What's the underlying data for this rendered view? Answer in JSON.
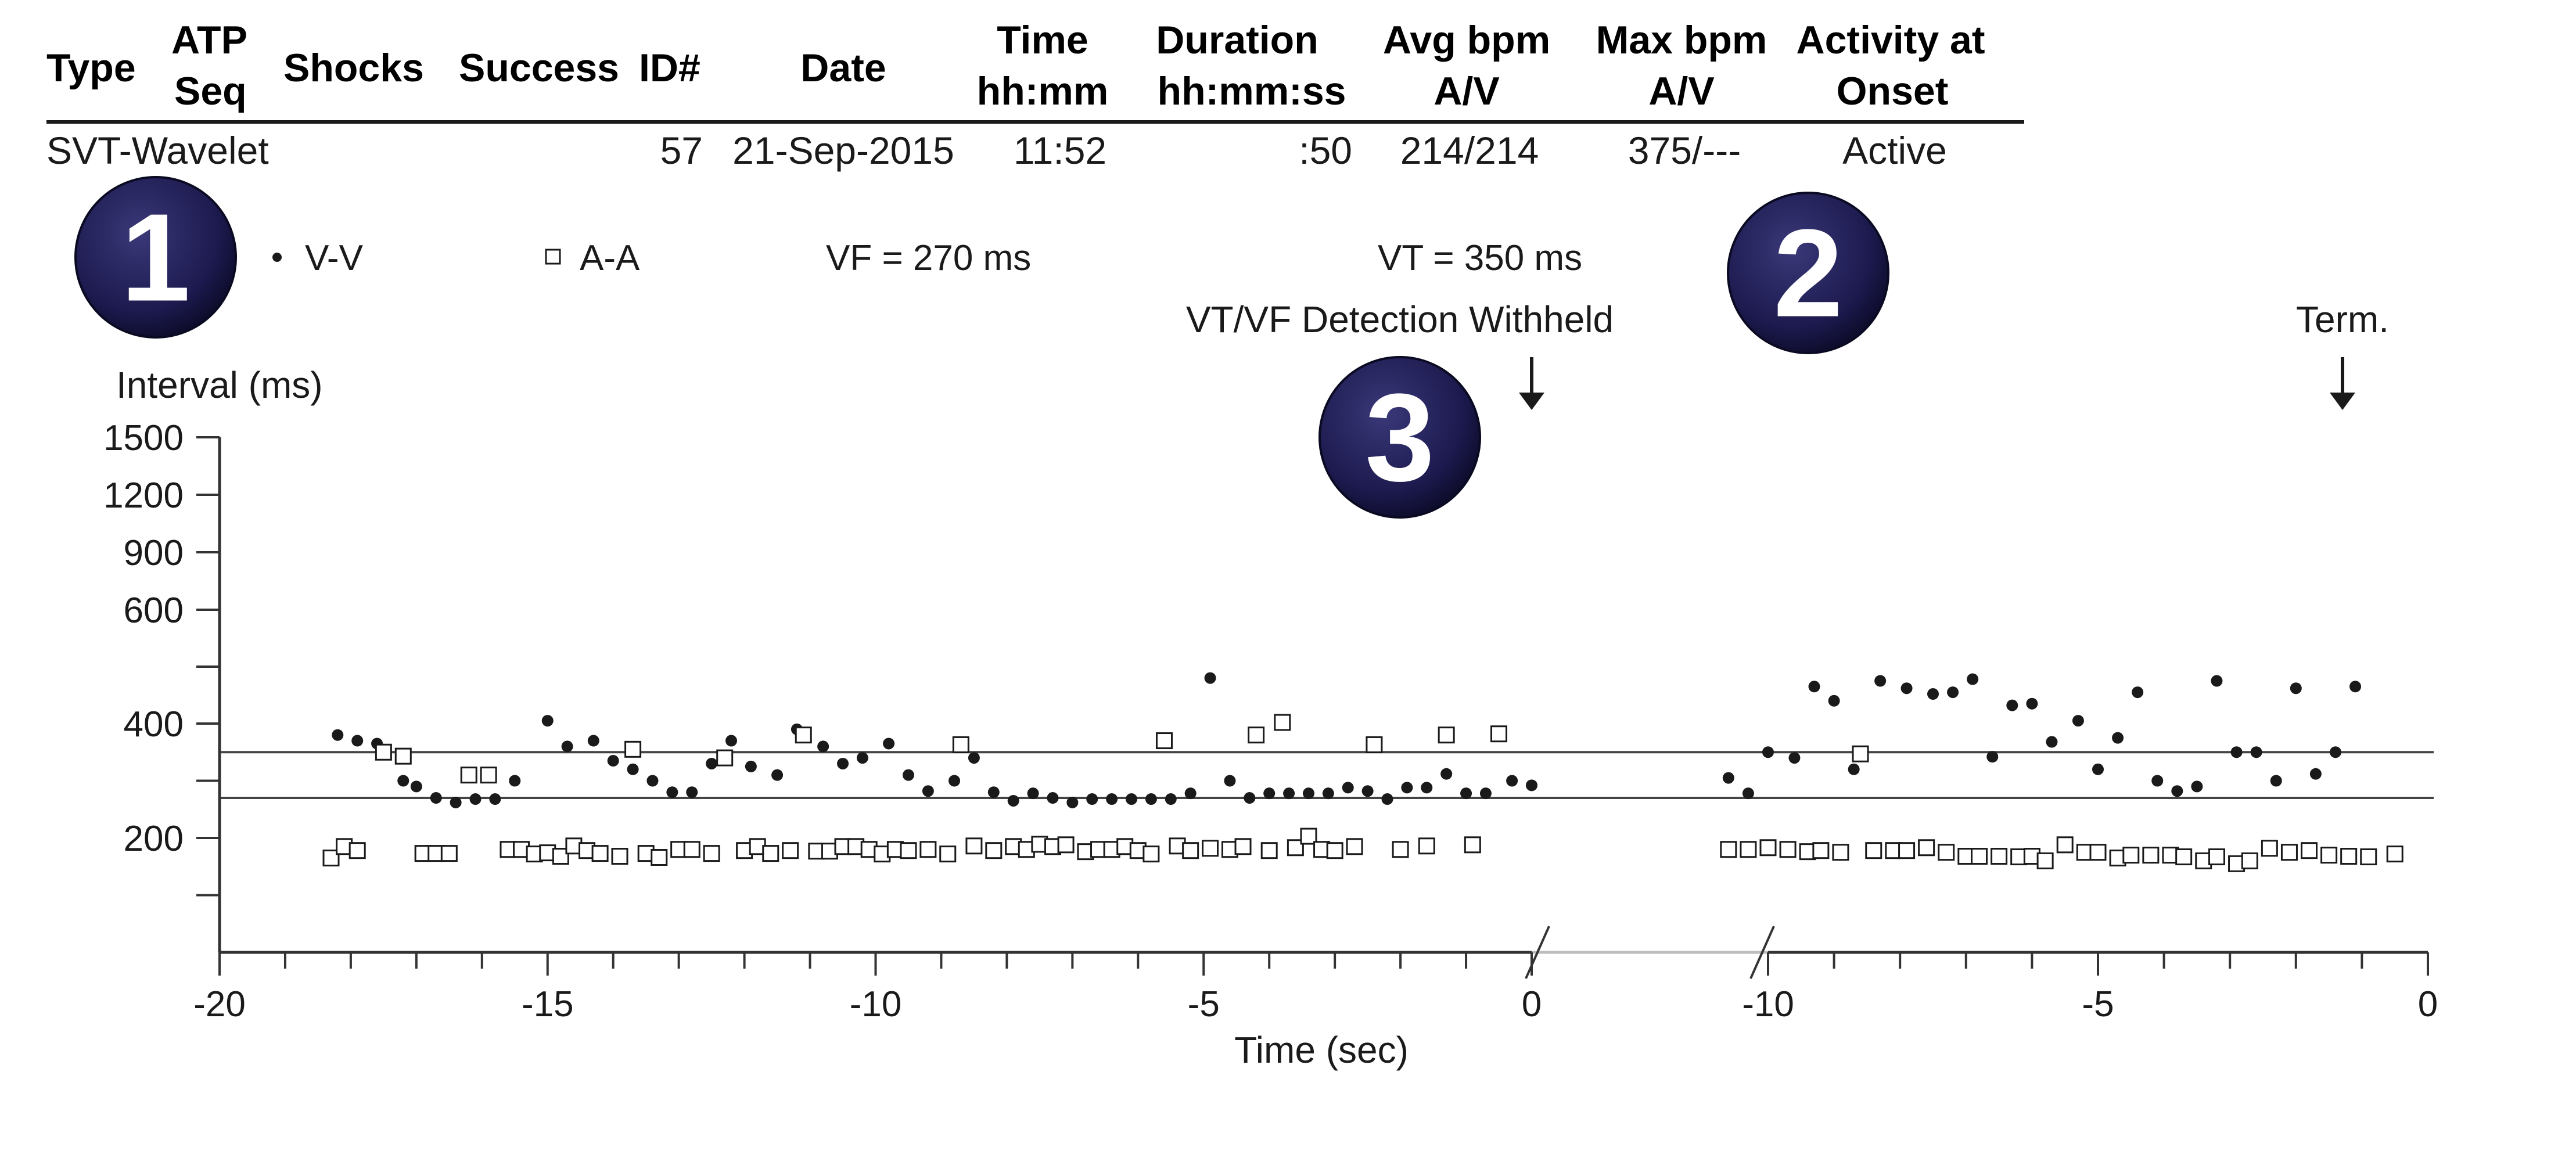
{
  "header": {
    "columns": [
      {
        "key": "type",
        "line1": "Type",
        "line2": ""
      },
      {
        "key": "atp_seq",
        "line1": "ATP",
        "line2": "Seq"
      },
      {
        "key": "shocks",
        "line1": "Shocks",
        "line2": ""
      },
      {
        "key": "success",
        "line1": "Success",
        "line2": ""
      },
      {
        "key": "id",
        "line1": "ID#",
        "line2": ""
      },
      {
        "key": "date",
        "line1": "Date",
        "line2": ""
      },
      {
        "key": "time",
        "line1": "Time",
        "line2": "hh:mm"
      },
      {
        "key": "duration",
        "line1": "Duration",
        "line2": "hh:mm:ss"
      },
      {
        "key": "avg_bpm",
        "line1": "Avg bpm",
        "line2": "A/V"
      },
      {
        "key": "max_bpm",
        "line1": "Max bpm",
        "line2": "A/V"
      },
      {
        "key": "activity",
        "line1": "Activity at",
        "line2": "Onset"
      }
    ],
    "row": {
      "type": "SVT-Wavelet",
      "id": "57",
      "date": "21-Sep-2015",
      "time": "11:52",
      "duration": ":50",
      "avg_bpm": "214/214",
      "max_bpm": "375/---",
      "activity": "Active"
    }
  },
  "badges": [
    "1",
    "2",
    "3"
  ],
  "legend": {
    "vv": "V-V",
    "aa": "A-A",
    "vf": "VF = 270 ms",
    "vt": "VT = 350 ms"
  },
  "annotations": {
    "detection_withheld": "VT/VF Detection Withheld",
    "term": "Term."
  },
  "colors": {
    "badge_fill": "#1c1a4e",
    "marks": "#1a1a1a",
    "axis": "#333333"
  },
  "chart_data": {
    "type": "scatter",
    "ylabel": "Interval (ms)",
    "xlabel": "Time (sec)",
    "y_ticks": [
      1500,
      1200,
      900,
      600,
      400,
      200
    ],
    "thresholds": [
      {
        "label": "VF",
        "value": 270
      },
      {
        "label": "VT",
        "value": 350
      }
    ],
    "panels": [
      {
        "xlim": [
          -20,
          0
        ],
        "x_ticks": [
          -20,
          -15,
          -10,
          -5,
          0
        ],
        "series": [
          {
            "name": "V-V",
            "marker": "dot",
            "x": [
              -18.2,
              -17.9,
              -17.6,
              -17.2,
              -17.0,
              -16.7,
              -16.4,
              -16.1,
              -15.8,
              -15.5,
              -15.0,
              -14.7,
              -14.3,
              -14.0,
              -13.7,
              -13.4,
              -13.1,
              -12.8,
              -12.5,
              -12.2,
              -11.9,
              -11.5,
              -11.2,
              -10.8,
              -10.5,
              -10.2,
              -9.8,
              -9.5,
              -9.2,
              -8.8,
              -8.5,
              -8.2,
              -7.9,
              -7.6,
              -7.3,
              -7.0,
              -6.7,
              -6.4,
              -6.1,
              -5.8,
              -5.5,
              -5.2,
              -4.9,
              -4.6,
              -4.3,
              -4.0,
              -3.7,
              -3.4,
              -3.1,
              -2.8,
              -2.5,
              -2.2,
              -1.9,
              -1.6,
              -1.3,
              -1.0,
              -0.7,
              -0.3,
              0.0
            ],
            "y": [
              380,
              370,
              365,
              300,
              290,
              270,
              262,
              268,
              268,
              300,
              405,
              360,
              370,
              335,
              320,
              300,
              280,
              280,
              330,
              370,
              325,
              310,
              390,
              360,
              330,
              340,
              365,
              310,
              282,
              300,
              340,
              280,
              265,
              278,
              270,
              262,
              268,
              268,
              268,
              268,
              268,
              278,
              480,
              300,
              270,
              278,
              278,
              278,
              278,
              288,
              282,
              268,
              288,
              288,
              312,
              278,
              278,
              300,
              292
            ]
          },
          {
            "name": "A-A",
            "marker": "square",
            "x": [
              -18.3,
              -18.1,
              -17.9,
              -17.5,
              -17.2,
              -16.9,
              -16.7,
              -16.5,
              -16.2,
              -15.9,
              -15.6,
              -15.4,
              -15.2,
              -15.0,
              -14.8,
              -14.6,
              -14.4,
              -14.2,
              -13.9,
              -13.7,
              -13.5,
              -13.3,
              -13.0,
              -12.8,
              -12.5,
              -12.3,
              -12.0,
              -11.8,
              -11.6,
              -11.3,
              -11.1,
              -10.9,
              -10.7,
              -10.5,
              -10.3,
              -10.1,
              -9.9,
              -9.7,
              -9.5,
              -9.2,
              -8.9,
              -8.7,
              -8.5,
              -8.2,
              -7.9,
              -7.7,
              -7.5,
              -7.3,
              -7.1,
              -6.8,
              -6.6,
              -6.4,
              -6.2,
              -6.0,
              -5.8,
              -5.6,
              -5.4,
              -5.2,
              -4.9,
              -4.6,
              -4.4,
              -4.2,
              -4.0,
              -3.8,
              -3.6,
              -3.4,
              -3.2,
              -3.0,
              -2.7,
              -2.4,
              -2.0,
              -1.6,
              -1.3,
              -0.9,
              -0.5
            ],
            "y": [
              165,
              185,
              178,
              350,
              343,
              173,
              173,
              173,
              310,
              310,
              180,
              180,
              172,
              174,
              168,
              186,
              178,
              173,
              168,
              355,
              173,
              166,
              180,
              180,
              173,
              340,
              178,
              185,
              173,
              178,
              380,
              177,
              177,
              185,
              185,
              180,
              172,
              180,
              178,
              180,
              172,
              363,
              186,
              178,
              185,
              180,
              189,
              185,
              188,
              176,
              180,
              180,
              185,
              178,
              172,
              370,
              186,
              178,
              182,
              180,
              185,
              380,
              178,
              402,
              183,
              203,
              180,
              178,
              185,
              363,
              180,
              186,
              380,
              188,
              382
            ]
          }
        ]
      },
      {
        "xlim": [
          -10,
          0
        ],
        "x_ticks": [
          -10,
          -5,
          0
        ],
        "series": [
          {
            "name": "V-V",
            "marker": "dot",
            "x": [
              -10.6,
              -10.3,
              -10.0,
              -9.6,
              -9.3,
              -9.0,
              -8.7,
              -8.3,
              -7.9,
              -7.5,
              -7.2,
              -6.9,
              -6.6,
              -6.3,
              -6.0,
              -5.7,
              -5.3,
              -5.0,
              -4.7,
              -4.4,
              -4.1,
              -3.8,
              -3.5,
              -3.2,
              -2.9,
              -2.6,
              -2.3,
              -2.0,
              -1.7,
              -1.4,
              -1.1
            ],
            "y": [
              305,
              278,
              350,
              340,
              465,
              440,
              320,
              475,
              462,
              452,
              455,
              478,
              342,
              432,
              435,
              368,
              405,
              320,
              375,
              455,
              300,
              282,
              290,
              475,
              350,
              350,
              300,
              462,
              312,
              350,
              465
            ]
          },
          {
            "name": "A-A",
            "marker": "square",
            "x": [
              -10.6,
              -10.3,
              -10.0,
              -9.7,
              -9.4,
              -9.2,
              -8.9,
              -8.6,
              -8.4,
              -8.1,
              -7.9,
              -7.6,
              -7.3,
              -7.0,
              -6.8,
              -6.5,
              -6.2,
              -6.0,
              -5.8,
              -5.5,
              -5.2,
              -5.0,
              -4.7,
              -4.5,
              -4.2,
              -3.9,
              -3.7,
              -3.4,
              -3.2,
              -2.9,
              -2.7,
              -2.4,
              -2.1,
              -1.8,
              -1.5,
              -1.2,
              -0.9,
              -0.5
            ],
            "y": [
              180,
              180,
              183,
              180,
              176,
              178,
              175,
              347,
              178,
              178,
              178,
              183,
              175,
              168,
              168,
              168,
              167,
              168,
              160,
              188,
              175,
              175,
              165,
              170,
              170,
              170,
              167,
              160,
              167,
              155,
              160,
              182,
              175,
              178,
              170,
              168,
              167,
              172
            ]
          }
        ]
      }
    ]
  }
}
